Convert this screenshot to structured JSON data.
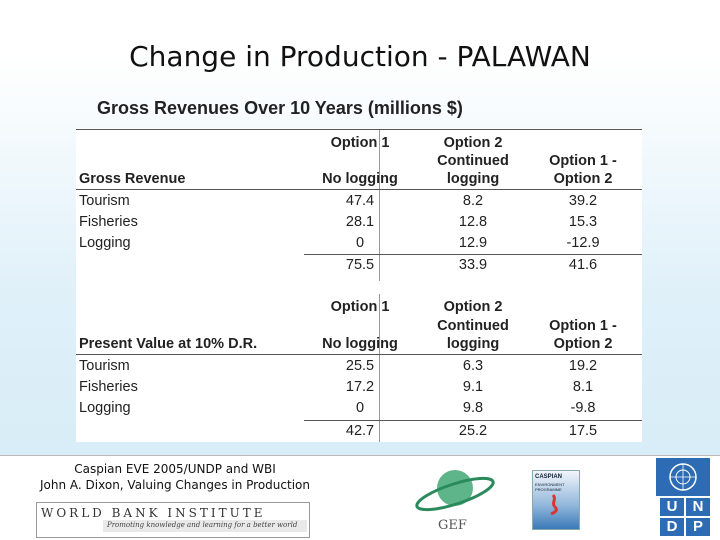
{
  "slide": {
    "title": "Change in Production - PALAWAN",
    "subtitle": "Gross Revenues Over 10 Years (millions $)"
  },
  "table1": {
    "option1_label": "Option 1",
    "option2_label": "Option 2",
    "option2_label_line2": "Continued",
    "diff_label": "Option 1 -",
    "diff_label_line2": "Option 2",
    "section_label": "Gross Revenue",
    "option1_sub": "No logging",
    "option2_sub": "logging",
    "rows": [
      {
        "label": "Tourism",
        "opt1": "47.4",
        "opt2": "8.2",
        "diff": "39.2"
      },
      {
        "label": "Fisheries",
        "opt1": "28.1",
        "opt2": "12.8",
        "diff": "15.3"
      },
      {
        "label": "Logging",
        "opt1": "0",
        "opt2": "12.9",
        "diff": "-12.9"
      }
    ],
    "total": {
      "opt1": "75.5",
      "opt2": "33.9",
      "diff": "41.6"
    }
  },
  "table2": {
    "option1_label": "Option 1",
    "option2_label": "Option 2",
    "option2_label_line2": "Continued",
    "diff_label": "Option 1 -",
    "diff_label_line2": "Option 2",
    "section_label": "Present Value at 10% D.R.",
    "option1_sub": "No logging",
    "option2_sub": "logging",
    "rows": [
      {
        "label": "Tourism",
        "opt1": "25.5",
        "opt2": "6.3",
        "diff": "19.2"
      },
      {
        "label": "Fisheries",
        "opt1": "17.2",
        "opt2": "9.1",
        "diff": "8.1"
      },
      {
        "label": "Logging",
        "opt1": "0",
        "opt2": "9.8",
        "diff": "-9.8"
      }
    ],
    "total": {
      "opt1": "42.7",
      "opt2": "25.2",
      "diff": "17.5"
    }
  },
  "footer": {
    "credit_line1": "Caspian EVE 2005/UNDP and WBI",
    "credit_line2": "John A. Dixon, Valuing Changes in Production",
    "wb_name": "WORLD BANK INSTITUTE",
    "wb_tagline": "Promoting knowledge and learning for a better world",
    "gef_label": "GEF",
    "caspian_title": "CASPIAN",
    "caspian_sub": "ENVIRONMENT PROGRAMME",
    "undp_letters": [
      "U",
      "N",
      "D",
      "P"
    ]
  }
}
